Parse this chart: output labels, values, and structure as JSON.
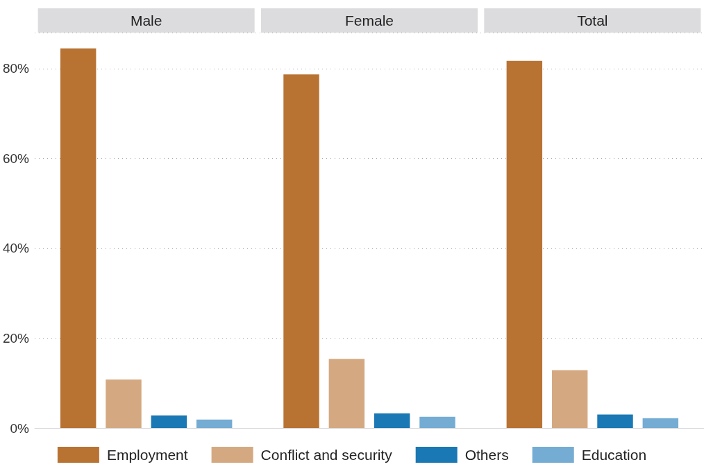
{
  "chart_data": {
    "type": "bar",
    "categories": [
      "Male",
      "Female",
      "Total"
    ],
    "series": [
      {
        "name": "Employment",
        "color": "#b87333",
        "values": [
          84.5,
          78.7,
          81.7
        ]
      },
      {
        "name": "Conflict and security",
        "color": "#d4a981",
        "values": [
          10.8,
          15.4,
          12.9
        ]
      },
      {
        "name": "Others",
        "color": "#1a78b4",
        "values": [
          2.8,
          3.3,
          3.0
        ]
      },
      {
        "name": "Education",
        "color": "#74acd3",
        "values": [
          1.9,
          2.5,
          2.2
        ]
      }
    ],
    "ylim": [
      0,
      88
    ],
    "yticks": [
      {
        "value": 0,
        "label": "0%"
      },
      {
        "value": 20,
        "label": "20%"
      },
      {
        "value": 40,
        "label": "40%"
      },
      {
        "value": 60,
        "label": "60%"
      },
      {
        "value": 80,
        "label": "80%"
      }
    ],
    "grid": "y",
    "legend": "bottom"
  }
}
